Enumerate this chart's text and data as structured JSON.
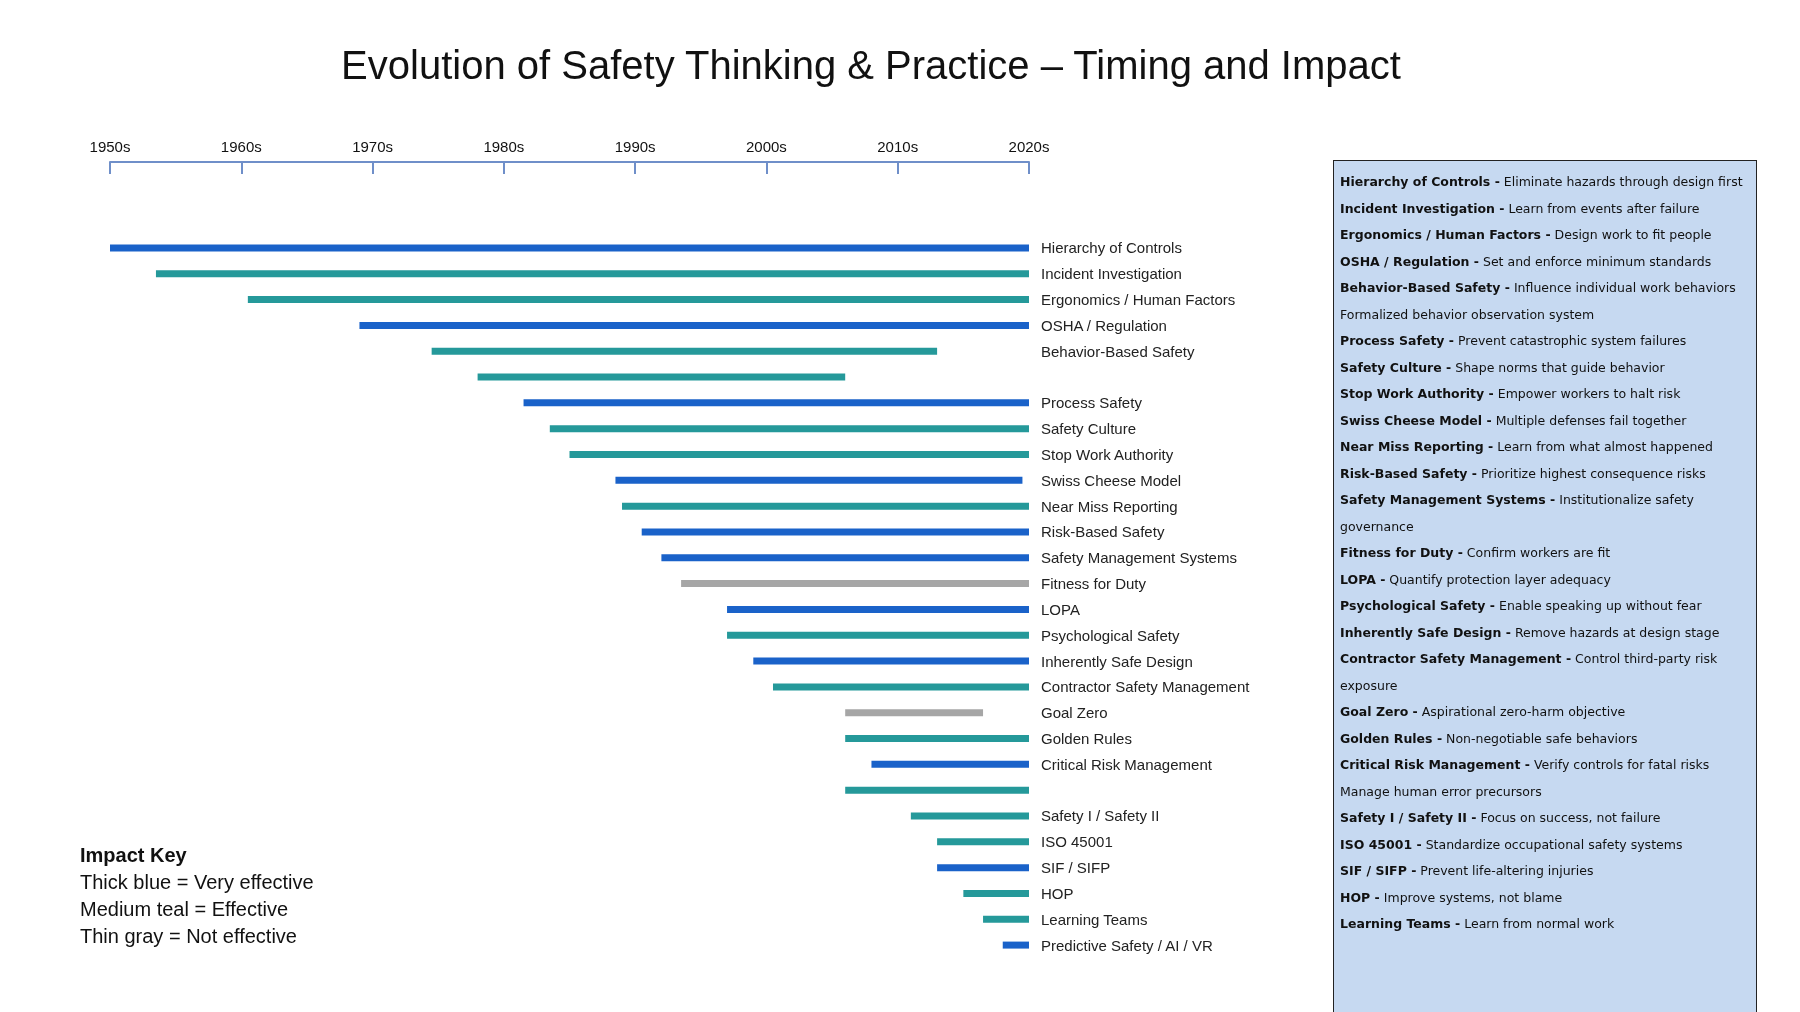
{
  "chart_data": {
    "type": "bar",
    "orientation": "horizontal",
    "title": "Evolution of Safety Thinking & Practice – Timing and Impact",
    "categories": [
      "Hierarchy of Controls",
      "Incident Investigation",
      "Ergonomics / Human Factors",
      "OSHA / Regulation",
      "Behavior-Based Safety",
      null,
      "Process Safety",
      "Safety Culture",
      "Stop Work Authority",
      "Swiss Cheese Model",
      "Near Miss Reporting",
      "Risk-Based Safety",
      "Safety Management Systems",
      "Fitness for Duty",
      "LOPA",
      "Psychological Safety",
      "Inherently Safe Design",
      "Contractor Safety Management",
      "Goal Zero",
      "Golden Rules",
      "Critical Risk Management",
      null,
      "Safety I / Safety II",
      "ISO 45001",
      "SIF / SIFP",
      "HOP",
      "Learning Teams",
      "Predictive Safety / AI / VR"
    ],
    "base": [
      1950,
      1953.5,
      1960.5,
      1969,
      1974.5,
      1978,
      1981.5,
      1983.5,
      1985,
      1988.5,
      1989,
      1990.5,
      1992,
      1993.5,
      1997,
      1997,
      1999,
      2000.5,
      2006,
      2006,
      2008,
      2006,
      2011,
      2013,
      2013,
      2015,
      2016.5,
      2018
    ],
    "values": [
      70,
      66.5,
      59.5,
      51,
      38.5,
      28,
      38.5,
      36.5,
      35,
      31,
      31,
      29.5,
      28,
      26.5,
      23,
      23,
      21,
      19.5,
      10.5,
      14,
      12,
      14,
      9,
      7,
      7,
      5,
      3.5,
      2
    ],
    "colors": [
      "#1a62c9",
      "#25999a",
      "#25999a",
      "#1a62c9",
      "#25999a",
      "#25999a",
      "#1a62c9",
      "#25999a",
      "#25999a",
      "#1a62c9",
      "#25999a",
      "#1a62c9",
      "#1a62c9",
      "#a6a6a6",
      "#1a62c9",
      "#25999a",
      "#1a62c9",
      "#25999a",
      "#a6a6a6",
      "#25999a",
      "#1a62c9",
      "#25999a",
      "#25999a",
      "#25999a",
      "#1a62c9",
      "#25999a",
      "#25999a",
      "#1a62c9"
    ],
    "xlim": [
      1950,
      2020
    ],
    "xticks": [
      {
        "value": 1950,
        "label": "1950s"
      },
      {
        "value": 1960,
        "label": "1960s"
      },
      {
        "value": 1970,
        "label": "1970s"
      },
      {
        "value": 1980,
        "label": "1980s"
      },
      {
        "value": 1990,
        "label": "1990s"
      },
      {
        "value": 2000,
        "label": "2000s"
      },
      {
        "value": 2010,
        "label": "2010s"
      },
      {
        "value": 2020,
        "label": "2020s"
      }
    ],
    "grid": false,
    "annotations": [
      "Impact Key",
      "Thick blue = Very effective",
      "Medium teal = Effective",
      "Thin gray = Not effective",
      "Hierarchy of Controls - Eliminate hazards through design first",
      "Incident Investigation - Learn from events after failure",
      "Ergonomics / Human Factors - Design work to fit people",
      "OSHA / Regulation - Set and enforce minimum standards",
      "Behavior-Based Safety - Influence individual work behaviors",
      "Formalized behavior observation system",
      "Process Safety - Prevent catastrophic system failures",
      "Safety Culture - Shape norms that guide behavior",
      "Stop Work Authority - Empower workers to halt risk",
      "Swiss Cheese Model - Multiple defenses fail together",
      "Near Miss Reporting - Learn from what almost happened",
      "Risk-Based Safety - Prioritize highest consequence risks",
      "Safety Management Systems - Institutionalize safety governance",
      "Fitness for Duty - Confirm workers are fit",
      "LOPA - Quantify protection layer adequacy",
      "Psychological Safety - Enable speaking up without fear",
      "Inherently Safe Design - Remove hazards at design stage",
      "Contractor Safety Management - Control third-party risk exposure",
      "Goal Zero - Aspirational zero-harm objective",
      "Golden Rules - Non-negotiable safe behaviors",
      "Critical Risk Management - Verify controls for fatal risks",
      "Manage human error precursors",
      "Safety I / Safety II - Focus on success, not failure",
      "ISO 45001 - Standardize occupational safety systems",
      "SIF / SIFP - Prevent life-altering injuries",
      "HOP - Improve systems, not blame",
      "Learning Teams - Learn from normal work"
    ]
  }
}
